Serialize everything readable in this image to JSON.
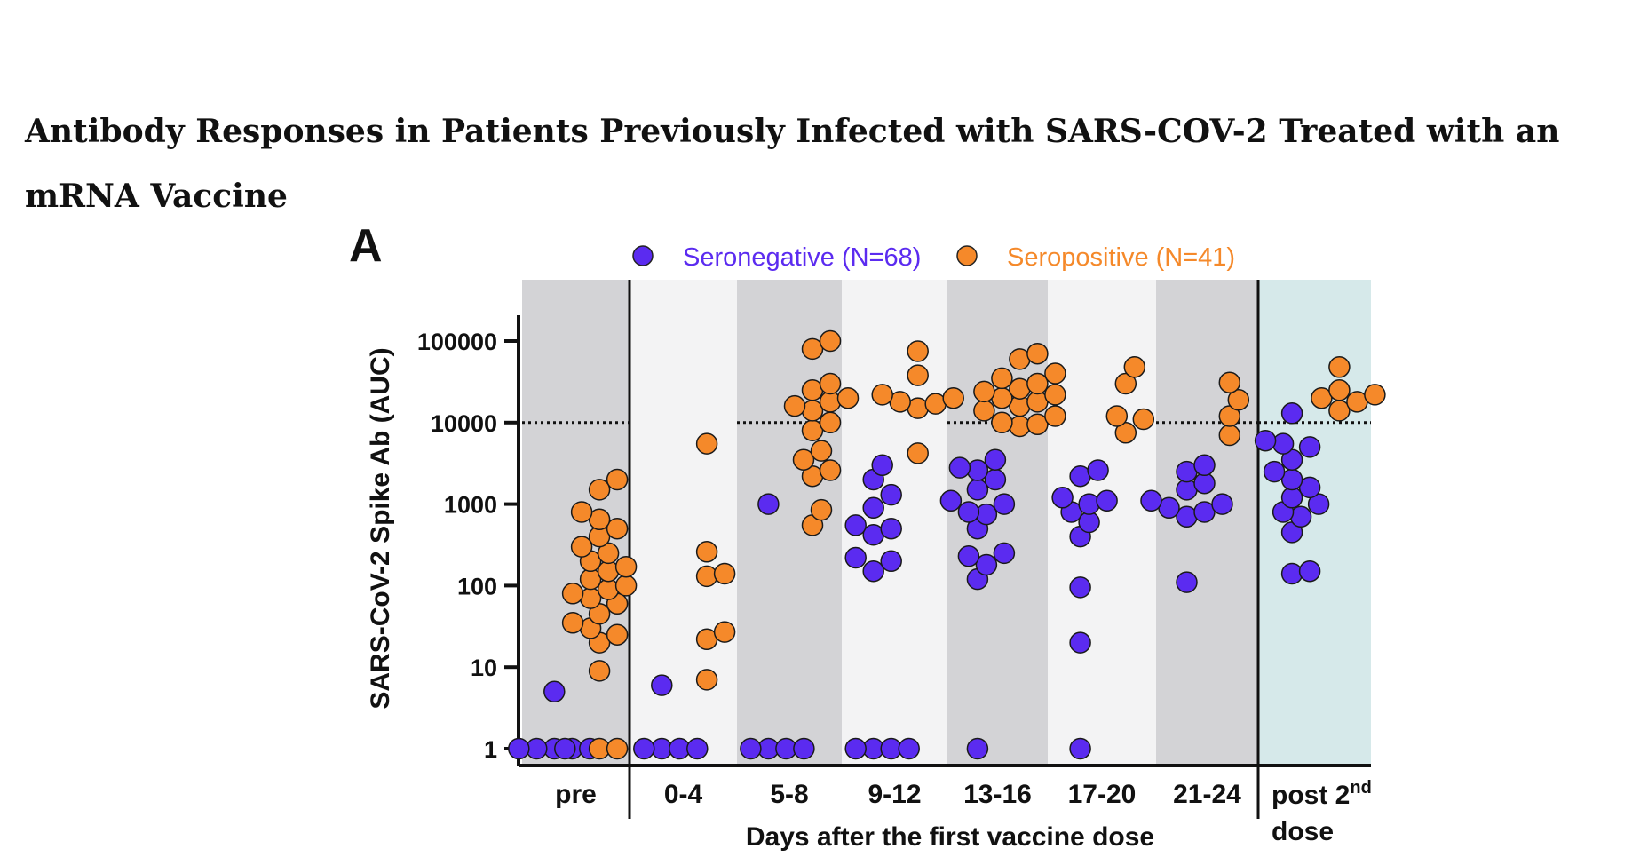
{
  "page": {
    "title": "Antibody Responses in Patients Previously Infected with SARS-COV-2 Treated with an mRNA Vaccine"
  },
  "chart_data": {
    "type": "scatter",
    "panel_label": "A",
    "ylabel": "SARS-CoV-2 Spike Ab (AUC)",
    "xlabel": "Days after the first vaccine dose",
    "yscale": "log",
    "ylim": [
      1,
      100000
    ],
    "yticks": [
      {
        "value": 1,
        "label": "1"
      },
      {
        "value": 10,
        "label": "10"
      },
      {
        "value": 100,
        "label": "100"
      },
      {
        "value": 1000,
        "label": "1000"
      },
      {
        "value": 10000,
        "label": "10000"
      },
      {
        "value": 100000,
        "label": "100000"
      }
    ],
    "threshold": 10000,
    "categories": [
      "pre",
      "0-4",
      "5-8",
      "9-12",
      "13-16",
      "17-20",
      "21-24",
      "post 2nd dose"
    ],
    "last_category_label": {
      "line1": "post 2",
      "sup": "nd",
      "line2": "dose"
    },
    "legend": [
      {
        "name": "Seronegative (N=68)",
        "color": "#5b2bf0"
      },
      {
        "name": "Seropositive (N=41)",
        "color": "#f5892a"
      }
    ],
    "colors": {
      "seronegative": "#5b2bf0",
      "seropositive": "#f5892a",
      "band_dark": "#d3d3d6",
      "band_light": "#f3f3f4",
      "band_post": "#d6e9ea"
    },
    "series": [
      {
        "name": "Seronegative",
        "values": [
          [
            1,
            1,
            1,
            1,
            1,
            1,
            5
          ],
          [
            1,
            1,
            1,
            1,
            6
          ],
          [
            1,
            1,
            1,
            1,
            1000
          ],
          [
            1,
            1,
            1,
            1,
            150,
            200,
            220,
            420,
            500,
            550,
            900,
            1300,
            2000,
            3000
          ],
          [
            1,
            120,
            180,
            230,
            250,
            500,
            750,
            800,
            1000,
            1100,
            1500,
            2000,
            2600,
            2800,
            3500
          ],
          [
            1,
            20,
            95,
            400,
            600,
            800,
            1000,
            1100,
            1200,
            2200,
            2600
          ],
          [
            110,
            700,
            800,
            900,
            1000,
            1100,
            1500,
            1800,
            2500,
            3000
          ],
          [
            140,
            150,
            450,
            700,
            800,
            1000,
            1200,
            1600,
            2000,
            2500,
            3500,
            5000,
            5500,
            6000,
            13000
          ]
        ]
      },
      {
        "name": "Seropositive",
        "values": [
          [
            1,
            1,
            9,
            20,
            25,
            30,
            35,
            45,
            60,
            70,
            80,
            90,
            100,
            120,
            150,
            170,
            200,
            250,
            300,
            400,
            500,
            650,
            800,
            1500,
            2000
          ],
          [
            7,
            22,
            27,
            130,
            140,
            260,
            5500
          ],
          [
            550,
            850,
            2200,
            2600,
            3500,
            4500,
            8000,
            10000,
            14000,
            16000,
            18000,
            20000,
            25000,
            30000,
            80000,
            100000
          ],
          [
            4200,
            15000,
            17000,
            18000,
            20000,
            22000,
            38000,
            75000
          ],
          [
            9000,
            9500,
            10000,
            12000,
            14000,
            16000,
            18000,
            20000,
            22000,
            24000,
            26000,
            30000,
            35000,
            40000,
            60000,
            70000
          ],
          [
            7500,
            11000,
            12000,
            30000,
            48000
          ],
          [
            7000,
            12000,
            19000,
            31000
          ],
          [
            14000,
            18000,
            20000,
            22000,
            25000,
            48000
          ]
        ]
      }
    ]
  }
}
